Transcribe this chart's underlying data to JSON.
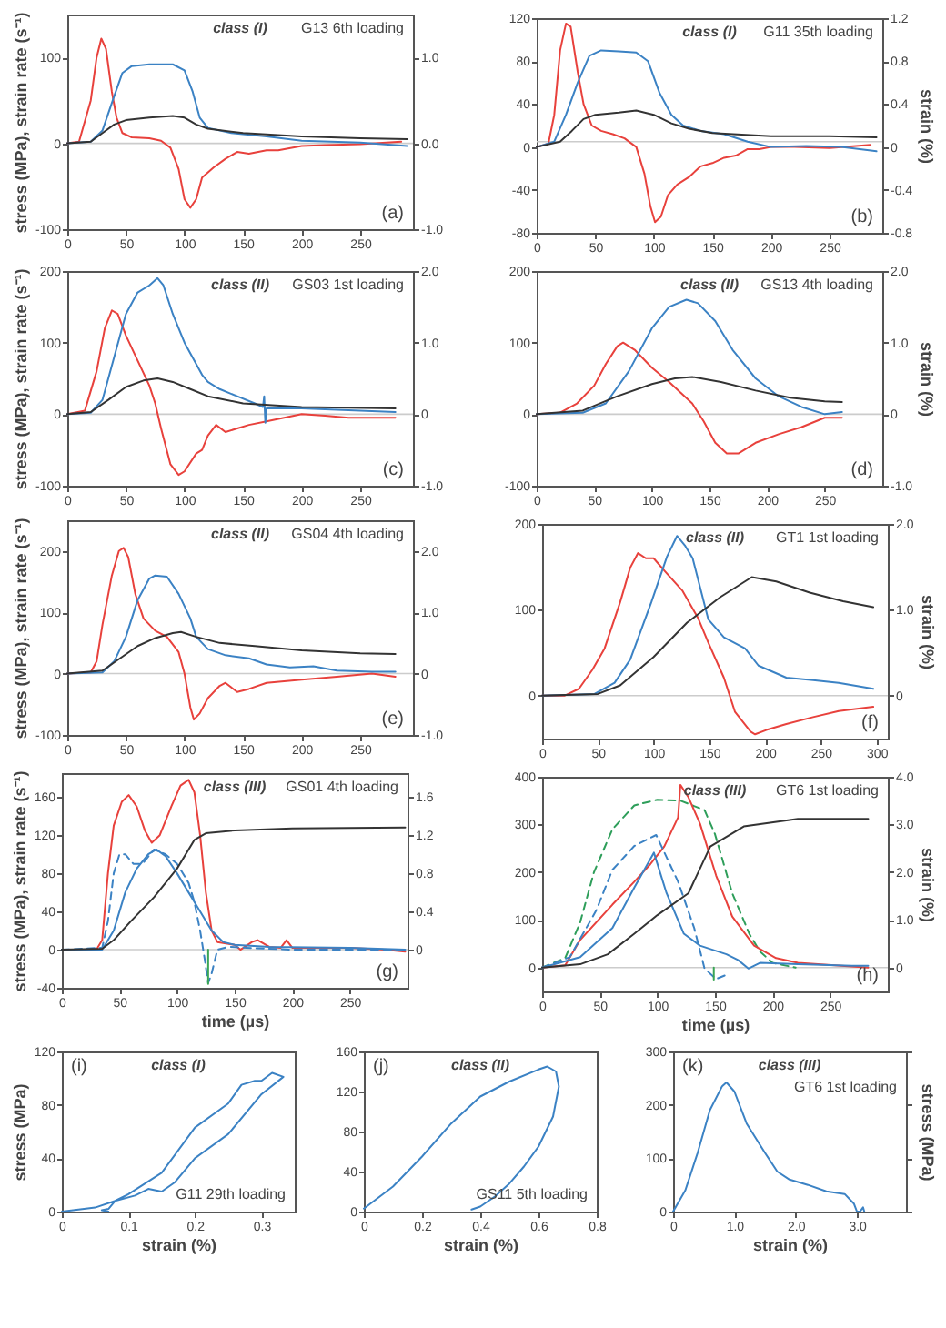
{
  "chart_data": [
    {
      "type": "line",
      "ylabel": "stress (MPa), strain rate (s⁻¹)",
      "annotations": [
        "class (I)",
        "G13 6th loading",
        "(a)"
      ],
      "xlim": [
        0,
        295
      ],
      "xticks": [
        0,
        50,
        100,
        150,
        200,
        250
      ],
      "ylim": [
        -100,
        150
      ],
      "yticks": [
        -100,
        0,
        100
      ],
      "y2lim": [
        -1.0,
        1.5
      ],
      "y2ticks": [
        {
          "value": -1,
          "label": "-1.0"
        },
        {
          "value": 0,
          "label": "0.0"
        },
        {
          "value": 1,
          "label": "1.0"
        }
      ],
      "ref_lines": [
        {
          "axis": "y",
          "value": 0,
          "color": "#cccccc"
        }
      ],
      "series": [
        {
          "color": "#e8413c",
          "x": [
            0,
            10,
            20,
            25,
            29,
            33,
            38,
            42,
            47,
            55,
            70,
            80,
            88,
            95,
            100,
            105,
            110,
            115,
            125,
            135,
            145,
            155,
            170,
            180,
            200,
            220,
            250,
            285
          ],
          "values": [
            0,
            2,
            50,
            100,
            122,
            110,
            60,
            30,
            12,
            7,
            6,
            3,
            -5,
            -30,
            -65,
            -75,
            -65,
            -40,
            -28,
            -18,
            -10,
            -12,
            -8,
            -8,
            -3,
            -2,
            -1,
            2
          ]
        },
        {
          "color": "#3b82c4",
          "x": [
            0,
            20,
            30,
            40,
            47,
            55,
            70,
            90,
            100,
            107,
            113,
            120,
            140,
            170,
            200,
            250,
            290
          ],
          "values": [
            0,
            2,
            15,
            55,
            82,
            90,
            92,
            92,
            85,
            60,
            30,
            18,
            12,
            8,
            3,
            1,
            -3
          ]
        },
        {
          "color": "#333333",
          "axis": "y2",
          "x": [
            0,
            20,
            30,
            40,
            50,
            70,
            90,
            100,
            110,
            120,
            150,
            200,
            250,
            290
          ],
          "values": [
            0,
            0.02,
            0.12,
            0.22,
            0.27,
            0.3,
            0.32,
            0.3,
            0.22,
            0.17,
            0.12,
            0.08,
            0.06,
            0.05
          ]
        }
      ]
    },
    {
      "type": "line",
      "y2label": "strain (%)",
      "annotations": [
        "class (I)",
        "G11 35th loading",
        "(b)"
      ],
      "xlim": [
        0,
        295
      ],
      "xticks": [
        0,
        50,
        100,
        150,
        200,
        250
      ],
      "ylim": [
        -80,
        120
      ],
      "yticks": [
        -80,
        -40,
        0,
        40,
        80,
        120
      ],
      "y2lim": [
        -0.8,
        1.2
      ],
      "y2ticks": [
        -0.8,
        -0.4,
        0,
        0.4,
        0.8,
        1.2
      ],
      "ref_lines": [
        {
          "axis": "y",
          "value": 5,
          "color": "#cccccc"
        }
      ],
      "series": [
        {
          "color": "#e8413c",
          "x": [
            0,
            10,
            15,
            20,
            25,
            29,
            35,
            40,
            47,
            55,
            65,
            75,
            85,
            92,
            97,
            101,
            106,
            112,
            120,
            130,
            140,
            150,
            160,
            170,
            180,
            190,
            200,
            220,
            250,
            285
          ],
          "values": [
            0,
            3,
            30,
            90,
            115,
            112,
            70,
            40,
            20,
            15,
            12,
            8,
            0,
            -25,
            -55,
            -70,
            -65,
            -45,
            -35,
            -28,
            -18,
            -15,
            -10,
            -8,
            -2,
            -2,
            0,
            0,
            -1,
            2
          ]
        },
        {
          "color": "#3b82c4",
          "x": [
            0,
            15,
            25,
            35,
            45,
            55,
            70,
            85,
            95,
            105,
            115,
            125,
            140,
            160,
            180,
            200,
            230,
            260,
            290
          ],
          "values": [
            0,
            5,
            30,
            60,
            85,
            90,
            89,
            88,
            80,
            50,
            30,
            20,
            15,
            12,
            5,
            0,
            1,
            0,
            -4
          ]
        },
        {
          "color": "#333333",
          "axis": "y2",
          "x": [
            0,
            20,
            30,
            40,
            50,
            70,
            85,
            100,
            115,
            130,
            150,
            200,
            250,
            290
          ],
          "values": [
            0,
            0.05,
            0.15,
            0.26,
            0.3,
            0.32,
            0.34,
            0.3,
            0.22,
            0.17,
            0.13,
            0.1,
            0.1,
            0.09
          ]
        }
      ]
    },
    {
      "type": "line",
      "ylabel": "stress (MPa), strain rate (s⁻¹)",
      "annotations": [
        "class (II)",
        "GS03 1st loading",
        "(c)"
      ],
      "xlim": [
        0,
        295
      ],
      "xticks": [
        0,
        50,
        100,
        150,
        200,
        250
      ],
      "ylim": [
        -100,
        200
      ],
      "yticks": [
        -100,
        0,
        100,
        200
      ],
      "y2lim": [
        -1.0,
        2.0
      ],
      "y2ticks": [
        {
          "value": -1,
          "label": "-1.0"
        },
        0,
        {
          "value": 1,
          "label": "1.0"
        },
        {
          "value": 2,
          "label": "2.0"
        }
      ],
      "ref_lines": [
        {
          "axis": "y",
          "value": 0,
          "color": "#cccccc"
        }
      ],
      "series": [
        {
          "color": "#e8413c",
          "x": [
            0,
            15,
            25,
            32,
            38,
            43,
            50,
            60,
            70,
            75,
            80,
            88,
            95,
            100,
            110,
            115,
            120,
            127,
            135,
            145,
            155,
            170,
            185,
            200,
            220,
            240,
            280
          ],
          "values": [
            0,
            5,
            60,
            120,
            145,
            140,
            110,
            75,
            40,
            15,
            -20,
            -70,
            -85,
            -80,
            -55,
            -50,
            -30,
            -15,
            -25,
            -20,
            -15,
            -10,
            -5,
            0,
            -2,
            -5,
            -5
          ]
        },
        {
          "color": "#3b82c4",
          "x": [
            0,
            20,
            30,
            40,
            50,
            60,
            70,
            77,
            82,
            90,
            100,
            110,
            115,
            120,
            130,
            145,
            160,
            167,
            168,
            169,
            170,
            200,
            250,
            280
          ],
          "values": [
            0,
            2,
            20,
            80,
            140,
            170,
            180,
            190,
            180,
            140,
            100,
            70,
            55,
            45,
            35,
            25,
            15,
            10,
            25,
            -12,
            8,
            8,
            5,
            3
          ]
        },
        {
          "color": "#333333",
          "axis": "y2",
          "x": [
            0,
            20,
            35,
            50,
            65,
            77,
            90,
            105,
            120,
            150,
            200,
            280
          ],
          "values": [
            0,
            0.03,
            0.2,
            0.38,
            0.47,
            0.5,
            0.45,
            0.35,
            0.25,
            0.15,
            0.1,
            0.08
          ]
        }
      ]
    },
    {
      "type": "line",
      "y2label": "strain (%)",
      "annotations": [
        "class (II)",
        "GS13 4th loading",
        "(d)"
      ],
      "xlim": [
        0,
        300
      ],
      "xticks": [
        0,
        50,
        100,
        150,
        200,
        250
      ],
      "ylim": [
        -100,
        200
      ],
      "yticks": [
        -100,
        0,
        100,
        200
      ],
      "y2lim": [
        -1.0,
        2.0
      ],
      "y2ticks": [
        {
          "value": -1,
          "label": "-1.0"
        },
        0,
        {
          "value": 1,
          "label": "1.0"
        },
        {
          "value": 2,
          "label": "2.0"
        }
      ],
      "ref_lines": [
        {
          "axis": "y",
          "value": 0,
          "color": "#cccccc"
        }
      ],
      "series": [
        {
          "color": "#e8413c",
          "x": [
            0,
            20,
            35,
            50,
            60,
            70,
            75,
            85,
            100,
            115,
            125,
            135,
            145,
            155,
            165,
            175,
            190,
            210,
            230,
            250,
            265
          ],
          "values": [
            0,
            2,
            15,
            40,
            70,
            95,
            100,
            90,
            65,
            45,
            30,
            15,
            -10,
            -40,
            -55,
            -55,
            -40,
            -28,
            -18,
            -5,
            -5
          ]
        },
        {
          "color": "#3b82c4",
          "x": [
            0,
            40,
            60,
            80,
            100,
            115,
            130,
            140,
            155,
            170,
            190,
            210,
            230,
            250,
            265
          ],
          "values": [
            0,
            2,
            15,
            60,
            120,
            150,
            160,
            155,
            130,
            90,
            50,
            25,
            10,
            0,
            3
          ]
        },
        {
          "color": "#333333",
          "axis": "y2",
          "x": [
            0,
            40,
            70,
            100,
            120,
            135,
            160,
            190,
            220,
            250,
            265
          ],
          "values": [
            0,
            0.05,
            0.25,
            0.42,
            0.5,
            0.52,
            0.45,
            0.33,
            0.23,
            0.18,
            0.17
          ]
        }
      ]
    },
    {
      "type": "line",
      "ylabel": "stress (MPa), strain rate (s⁻¹)",
      "annotations": [
        "class (II)",
        "GS04 4th loading",
        "(e)"
      ],
      "xlim": [
        0,
        295
      ],
      "xticks": [
        0,
        50,
        100,
        150,
        200,
        250
      ],
      "ylim": [
        -100,
        250
      ],
      "yticks": [
        -100,
        0,
        100,
        200
      ],
      "y2lim": [
        -1.0,
        2.5
      ],
      "y2ticks": [
        {
          "value": -1,
          "label": "-1.0"
        },
        0,
        {
          "value": 1,
          "label": "1.0"
        },
        {
          "value": 2,
          "label": "2.0"
        }
      ],
      "ref_lines": [
        {
          "axis": "y",
          "value": 0,
          "color": "#cccccc"
        }
      ],
      "series": [
        {
          "color": "#e8413c",
          "x": [
            0,
            20,
            25,
            30,
            38,
            44,
            48,
            52,
            58,
            65,
            75,
            85,
            95,
            100,
            105,
            108,
            113,
            120,
            130,
            135,
            145,
            155,
            170,
            200,
            230,
            260,
            280
          ],
          "values": [
            0,
            2,
            20,
            80,
            160,
            200,
            205,
            190,
            130,
            90,
            70,
            60,
            35,
            0,
            -55,
            -75,
            -65,
            -40,
            -20,
            -15,
            -30,
            -25,
            -15,
            -10,
            -5,
            0,
            -5
          ]
        },
        {
          "color": "#3b82c4",
          "x": [
            0,
            30,
            40,
            50,
            60,
            70,
            75,
            85,
            95,
            105,
            110,
            120,
            135,
            155,
            170,
            190,
            210,
            230,
            260,
            280
          ],
          "values": [
            0,
            2,
            20,
            60,
            120,
            155,
            160,
            158,
            130,
            90,
            60,
            40,
            30,
            25,
            15,
            10,
            12,
            5,
            3,
            3
          ]
        },
        {
          "color": "#333333",
          "axis": "y2",
          "x": [
            0,
            30,
            45,
            60,
            75,
            90,
            97,
            110,
            130,
            160,
            200,
            250,
            280
          ],
          "values": [
            0,
            0.05,
            0.25,
            0.45,
            0.58,
            0.66,
            0.68,
            0.6,
            0.5,
            0.45,
            0.38,
            0.33,
            0.32
          ]
        }
      ]
    },
    {
      "type": "line",
      "y2label": "strain (%)",
      "annotations": [
        "class (II)",
        "GT1 1st loading",
        "(f)"
      ],
      "xlim": [
        0,
        310
      ],
      "xticks": [
        0,
        50,
        100,
        150,
        200,
        250,
        300
      ],
      "ylim": [
        -50,
        200
      ],
      "yticks": [
        0,
        100,
        200
      ],
      "y2lim": [
        -0.5,
        2.0
      ],
      "y2ticks": [
        0,
        {
          "value": 1,
          "label": "1.0"
        },
        {
          "value": 2,
          "label": "2.0"
        }
      ],
      "ref_lines": [
        {
          "axis": "y",
          "value": 0,
          "color": "#cccccc"
        }
      ],
      "series": [
        {
          "color": "#e8413c",
          "x": [
            0,
            20,
            33,
            45,
            56,
            70,
            79,
            86,
            93,
            100,
            110,
            126,
            140,
            149,
            163,
            173,
            187,
            191,
            201,
            219,
            243,
            266,
            297
          ],
          "values": [
            0,
            0,
            8,
            30,
            55,
            109,
            149,
            166,
            160,
            160,
            145,
            122,
            90,
            62,
            21,
            -19,
            -42,
            -45,
            -40,
            -33,
            -25,
            -18,
            -13
          ]
        },
        {
          "color": "#3b82c4",
          "x": [
            0,
            47,
            65,
            79,
            98,
            112,
            121,
            128,
            135,
            149,
            163,
            182,
            194,
            219,
            243,
            266,
            297
          ],
          "values": [
            0,
            2,
            15,
            42,
            109,
            162,
            186,
            175,
            160,
            89,
            68,
            55,
            35,
            21,
            18,
            15,
            8
          ]
        },
        {
          "color": "#333333",
          "axis": "y2",
          "x": [
            0,
            50,
            70,
            100,
            130,
            160,
            188,
            210,
            240,
            270,
            297
          ],
          "values": [
            0,
            0.02,
            0.12,
            0.45,
            0.85,
            1.15,
            1.38,
            1.33,
            1.2,
            1.1,
            1.03
          ]
        }
      ]
    },
    {
      "type": "line",
      "ylabel": "stress (MPa), strain rate (s⁻¹)",
      "xlabel": "time (µs)",
      "annotations": [
        "class (III)",
        "GS01 4th loading",
        "(g)"
      ],
      "xlim": [
        0,
        300
      ],
      "xticks": [
        0,
        50,
        100,
        150,
        200,
        250
      ],
      "ylim": [
        -40,
        185
      ],
      "yticks": [
        -40,
        0,
        40,
        80,
        120,
        160
      ],
      "y2lim": [
        -0.4,
        1.85
      ],
      "y2ticks": [
        0,
        0.4,
        0.8,
        1.2,
        1.6
      ],
      "ref_lines": [
        {
          "axis": "y",
          "value": 0,
          "color": "#cccccc"
        }
      ],
      "series": [
        {
          "color": "#333333",
          "axis": "y2",
          "x": [
            0,
            35,
            45,
            60,
            80,
            100,
            115,
            125,
            150,
            200,
            298
          ],
          "values": [
            0,
            0.01,
            0.1,
            0.3,
            0.55,
            0.85,
            1.15,
            1.22,
            1.25,
            1.27,
            1.28
          ]
        },
        {
          "color": "#e8413c",
          "x": [
            0,
            30,
            35,
            40,
            45,
            52,
            58,
            65,
            72,
            78,
            85,
            95,
            103,
            110,
            115,
            120,
            125,
            130,
            135,
            150,
            155,
            165,
            170,
            180,
            190,
            195,
            200,
            220,
            250,
            280,
            298
          ],
          "values": [
            0,
            0,
            10,
            80,
            130,
            155,
            162,
            150,
            125,
            112,
            120,
            150,
            172,
            178,
            165,
            120,
            60,
            20,
            8,
            5,
            0,
            8,
            10,
            3,
            2,
            10,
            2,
            2,
            2,
            0,
            -2
          ]
        },
        {
          "color": "#3b82c4",
          "x": [
            0,
            35,
            45,
            55,
            65,
            75,
            82,
            90,
            100,
            110,
            120,
            130,
            140,
            150,
            180,
            250,
            298
          ],
          "values": [
            0,
            0,
            20,
            60,
            85,
            100,
            105,
            98,
            80,
            60,
            40,
            20,
            8,
            5,
            3,
            2,
            0
          ]
        },
        {
          "color": "#3b82c4",
          "line_style": "dashed",
          "x": [
            0,
            35,
            40,
            45,
            50,
            55,
            62,
            70,
            80,
            90,
            100,
            110,
            115,
            120,
            124,
            127,
            130,
            135,
            145,
            160,
            200,
            250,
            298
          ],
          "values": [
            0,
            2,
            30,
            80,
            100,
            100,
            90,
            90,
            105,
            100,
            90,
            70,
            50,
            20,
            -10,
            -35,
            -25,
            0,
            3,
            2,
            0,
            0,
            0
          ]
        },
        {
          "color": "#3aa655",
          "x": [
            127,
            127
          ],
          "values": [
            0,
            -36
          ]
        }
      ]
    },
    {
      "type": "line",
      "y2label": "strain (%)",
      "xlabel": "time (µs)",
      "annotations": [
        "class (III)",
        "GT6 1st loading",
        "(h)"
      ],
      "xlim": [
        0,
        300
      ],
      "xticks": [
        0,
        50,
        100,
        150,
        200,
        250
      ],
      "ylim": [
        -50,
        400
      ],
      "yticks": [
        0,
        100,
        200,
        300,
        400
      ],
      "y2lim": [
        -0.5,
        4.0
      ],
      "y2ticks": [
        0,
        {
          "value": 1,
          "label": "1.0"
        },
        {
          "value": 2,
          "label": "2.0"
        },
        {
          "value": 3,
          "label": "3.0"
        },
        {
          "value": 4,
          "label": "4.0"
        }
      ],
      "ref_lines": [
        {
          "axis": "y",
          "value": 0,
          "color": "#cccccc"
        }
      ],
      "series": [
        {
          "color": "#333333",
          "axis": "y2",
          "x": [
            0,
            33,
            57,
            80,
            100,
            127,
            146,
            175,
            222,
            283
          ],
          "values": [
            0,
            0.07,
            0.28,
            0.71,
            1.1,
            1.56,
            2.54,
            2.96,
            3.12,
            3.12
          ]
        },
        {
          "color": "#2e9e5a",
          "line_style": "dashed",
          "x": [
            0,
            20,
            33,
            45,
            61,
            80,
            100,
            120,
            141,
            150,
            165,
            180,
            189,
            200,
            220
          ],
          "values": [
            0,
            20,
            95,
            200,
            290,
            340,
            352,
            350,
            330,
            280,
            156,
            70,
            34,
            10,
            0
          ]
        },
        {
          "color": "#e8413c",
          "x": [
            0,
            20,
            33,
            61,
            80,
            94,
            106,
            118,
            120,
            127,
            137,
            151,
            165,
            184,
            203,
            222,
            283
          ],
          "values": [
            0,
            5,
            58,
            132,
            180,
            217,
            254,
            315,
            383,
            357,
            302,
            193,
            107,
            46,
            20,
            10,
            0
          ]
        },
        {
          "color": "#3b82c4",
          "line_style": "dashed",
          "x": [
            0,
            24,
            47,
            61,
            80,
            99,
            118,
            132,
            141,
            151,
            160
          ],
          "values": [
            0,
            22,
            120,
            205,
            255,
            278,
            180,
            83,
            -2,
            -24,
            -15
          ]
        },
        {
          "color": "#3b82c4",
          "x": [
            0,
            33,
            61,
            80,
            97,
            108,
            123,
            137,
            160,
            170,
            179,
            189,
            222,
            269,
            283
          ],
          "values": [
            0,
            22,
            83,
            168,
            241,
            156,
            71,
            46,
            28,
            16,
            -2,
            10,
            7,
            4,
            4
          ]
        },
        {
          "color": "#3aa655",
          "x": [
            149,
            149
          ],
          "values": [
            0,
            -25
          ]
        }
      ]
    },
    {
      "type": "line",
      "xlabel": "strain (%)",
      "ylabel": "stress (MPa)",
      "annotations": [
        "(i)",
        "class (I)",
        "G11 29th loading"
      ],
      "xlim": [
        0,
        0.35
      ],
      "xticks": [
        0,
        0.1,
        0.2,
        0.3
      ],
      "ylim": [
        0,
        120
      ],
      "yticks": [
        0,
        40,
        80,
        120
      ],
      "series": [
        {
          "color": "#3b82c4",
          "x": [
            0,
            0.05,
            0.08,
            0.1,
            0.15,
            0.2,
            0.25,
            0.27,
            0.29,
            0.3,
            0.316,
            0.333,
            0.3,
            0.25,
            0.2,
            0.17,
            0.15,
            0.13,
            0.11,
            0.08,
            0.07,
            0.06,
            0.07
          ],
          "values": [
            0,
            3,
            8,
            13,
            29,
            63,
            81,
            95,
            98,
            98,
            104,
            101,
            88,
            58,
            40,
            22,
            15,
            17,
            12,
            8,
            2,
            1,
            0
          ]
        }
      ]
    },
    {
      "type": "line",
      "xlabel": "strain (%)",
      "annotations": [
        "(j)",
        "class (II)",
        "GS11 5th loading"
      ],
      "xlim": [
        0,
        0.8
      ],
      "xticks": [
        0,
        0.2,
        0.4,
        0.6,
        0.8
      ],
      "ylim": [
        0,
        160
      ],
      "yticks": [
        0,
        40,
        80,
        120,
        160
      ],
      "series": [
        {
          "color": "#3b82c4",
          "x": [
            0,
            0.1,
            0.2,
            0.3,
            0.4,
            0.5,
            0.6,
            0.63,
            0.66,
            0.67,
            0.65,
            0.6,
            0.55,
            0.5,
            0.45,
            0.4,
            0.37
          ],
          "values": [
            3,
            25,
            55,
            88,
            115,
            130,
            142,
            145,
            140,
            125,
            95,
            65,
            45,
            28,
            15,
            5,
            2
          ]
        }
      ]
    },
    {
      "type": "line",
      "xlabel": "strain (%)",
      "y2label": "stress (MPa)",
      "annotations": [
        "(k)",
        "class (III)",
        "GT6 1st loading"
      ],
      "xlim": [
        0,
        3.8
      ],
      "xticks": [
        0,
        {
          "value": 1,
          "label": "1.0"
        },
        {
          "value": 2,
          "label": "2.0"
        },
        {
          "value": 3,
          "label": "3.0"
        }
      ],
      "ylim": [
        0,
        300
      ],
      "yticks": [
        0,
        100,
        200,
        300
      ],
      "series": [
        {
          "color": "#3b82c4",
          "x": [
            0,
            0.2,
            0.4,
            0.6,
            0.8,
            0.87,
            1.0,
            1.2,
            1.5,
            1.7,
            1.9,
            2.2,
            2.5,
            2.8,
            2.95,
            3.0,
            3.05,
            3.1,
            3.12
          ],
          "values": [
            0,
            40,
            110,
            190,
            235,
            242,
            225,
            165,
            110,
            75,
            60,
            50,
            38,
            33,
            15,
            0,
            0,
            8,
            0
          ]
        }
      ]
    }
  ]
}
